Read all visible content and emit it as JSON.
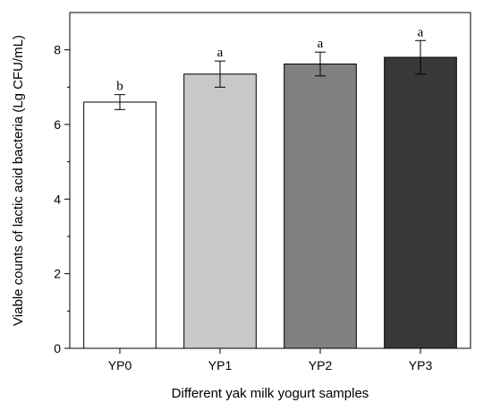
{
  "chart_data": {
    "type": "bar",
    "title": "",
    "xlabel": "Different yak milk yogurt samples",
    "ylabel": "Viable counts of lactic acid bacteria (Lg CFU/mL)",
    "categories": [
      "YP0",
      "YP1",
      "YP2",
      "YP3"
    ],
    "values": [
      6.6,
      7.35,
      7.62,
      7.8
    ],
    "errors": [
      0.2,
      0.35,
      0.32,
      0.45
    ],
    "significance": [
      "b",
      "a",
      "a",
      "a"
    ],
    "colors": [
      "#ffffff",
      "#c8c8c8",
      "#808080",
      "#383838"
    ],
    "ylim": [
      0,
      9
    ],
    "yticks": [
      0,
      2,
      4,
      6,
      8
    ],
    "grid": false,
    "legend": "none"
  }
}
